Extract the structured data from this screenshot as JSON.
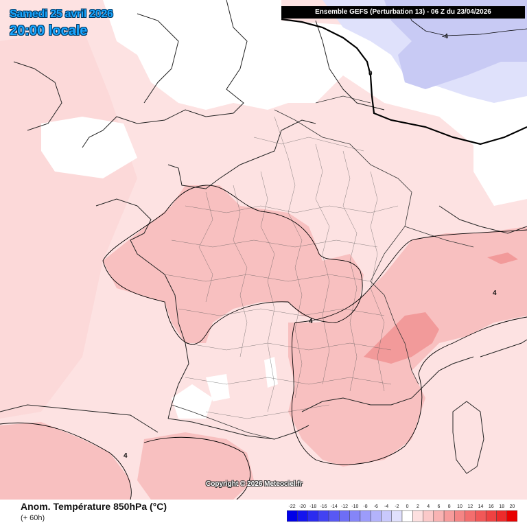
{
  "header": {
    "date_title": "Samedi 25 avril 2026",
    "time_title": "20:00 locale",
    "model_banner": "Ensemble GEFS  (Perturbation 13)  -  06 Z du 23/04/2026"
  },
  "map": {
    "copyright": "Copyright © 2026 Meteociel.fr",
    "contour_labels": [
      {
        "id": "neg4-north",
        "text": "-4"
      },
      {
        "id": "zero-north",
        "text": "0"
      },
      {
        "id": "four-east",
        "text": "4"
      },
      {
        "id": "four-central",
        "text": "4"
      },
      {
        "id": "four-southwest",
        "text": "4"
      }
    ],
    "colors": {
      "anom_neg4": "#c8caf4",
      "anom_neg2": "#dfe1fb",
      "anom_pos2": "#fde2e2",
      "anom_pos4": "#f8b9b9",
      "anom_pos6": "#f29a9a"
    }
  },
  "footer": {
    "field_title": "Anom. Température 850hPa (°C)",
    "forecast_hour": "(+ 60h)"
  },
  "legend": {
    "labels": [
      "-22",
      "-20",
      "-18",
      "-16",
      "-14",
      "-12",
      "-10",
      "-8",
      "-6",
      "-4",
      "-2",
      "0",
      "2",
      "4",
      "6",
      "8",
      "10",
      "12",
      "14",
      "16",
      "18",
      "20"
    ],
    "colors": [
      "#0000e8",
      "#1515ee",
      "#2b2bf0",
      "#4242f2",
      "#5858f4",
      "#6e6ef6",
      "#8585f8",
      "#9c9cfa",
      "#b3b3fb",
      "#c9c9fc",
      "#e0e0fd",
      "#ffffff",
      "#fde0e0",
      "#fbc9c9",
      "#f9b3b3",
      "#f79c9c",
      "#f58585",
      "#f36e6e",
      "#f15858",
      "#ef4242",
      "#ed2b2b",
      "#e80000"
    ]
  }
}
